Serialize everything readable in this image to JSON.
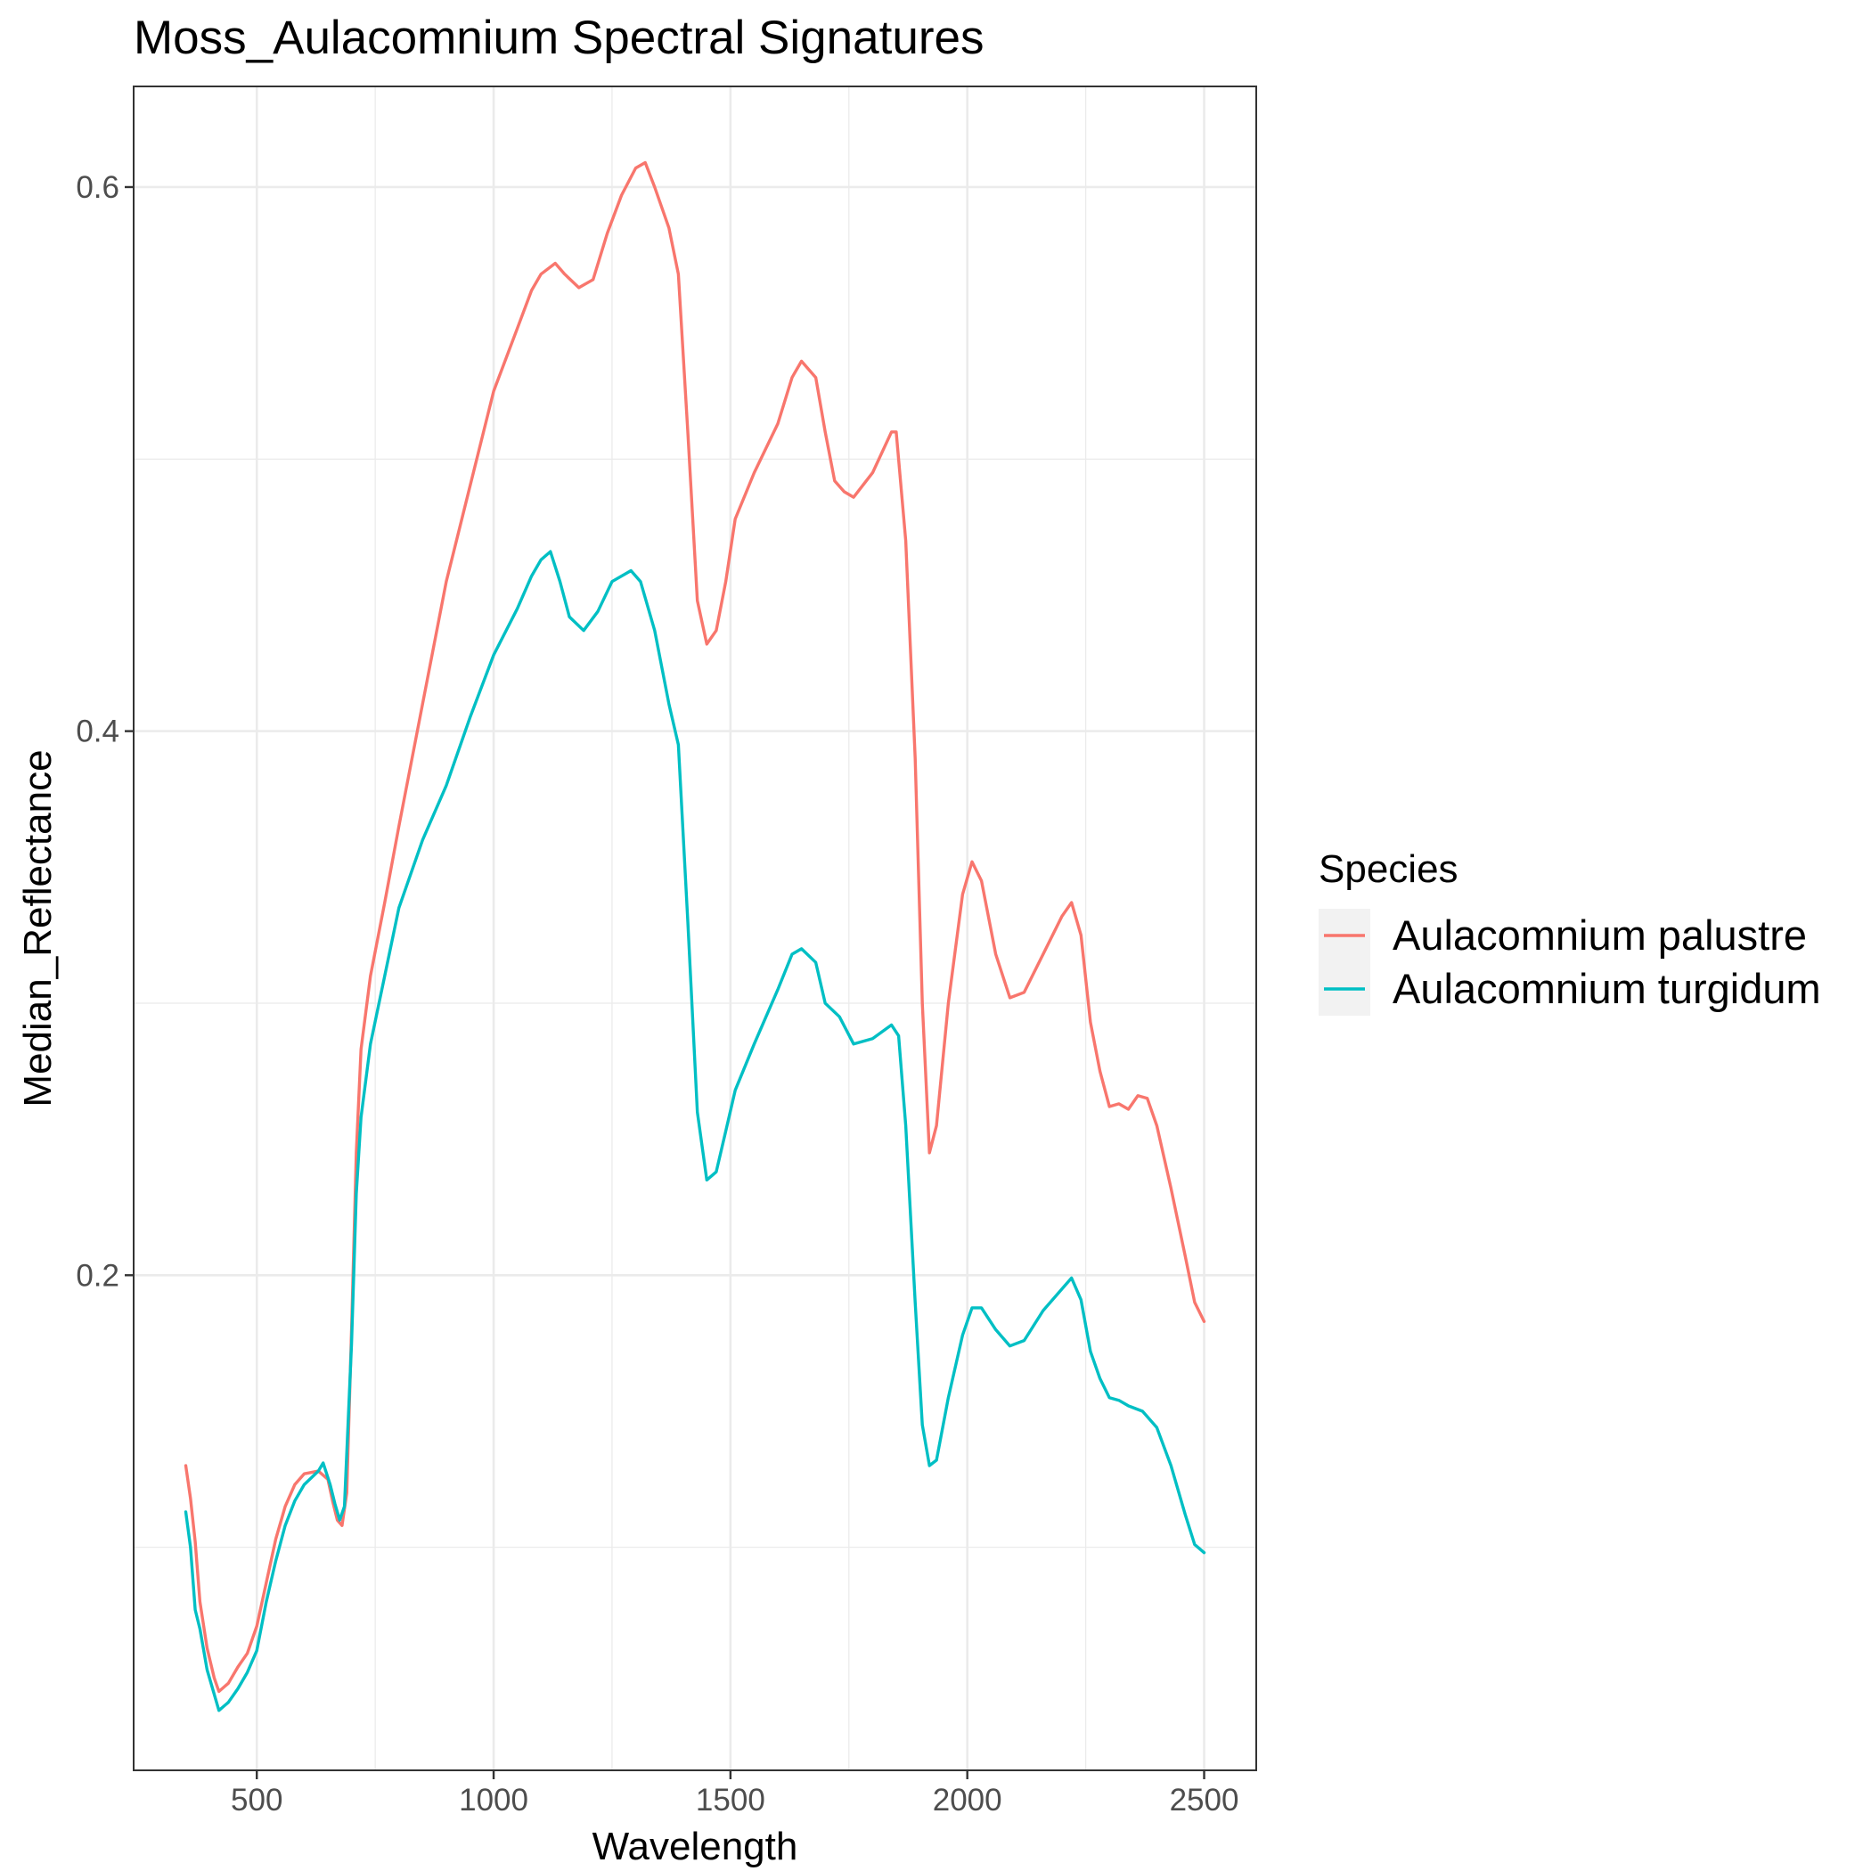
{
  "chart_data": {
    "type": "line",
    "title": "Moss_Aulacomnium Spectral Signatures",
    "xlabel": "Wavelength",
    "ylabel": "Median_Reflectance",
    "xlim": [
      240,
      2610
    ],
    "ylim": [
      0.018,
      0.637
    ],
    "x_ticks": [
      500,
      1000,
      1500,
      2000,
      2500
    ],
    "x_tick_labels": [
      "500",
      "1000",
      "1500",
      "2000",
      "2500"
    ],
    "y_ticks": [
      0.2,
      0.4,
      0.6
    ],
    "y_tick_labels": [
      "0.2",
      "0.4",
      "0.6"
    ],
    "x_minor_ticks": [
      750,
      1250,
      1750,
      2250
    ],
    "y_minor_ticks": [
      0.1,
      0.3,
      0.5
    ],
    "grid": true,
    "legend": {
      "title": "Species",
      "position": "right"
    },
    "series": [
      {
        "name": "Aulacomnium palustre",
        "color": "#F8766D",
        "points": [
          [
            350,
            0.13
          ],
          [
            360,
            0.118
          ],
          [
            370,
            0.102
          ],
          [
            380,
            0.08
          ],
          [
            395,
            0.063
          ],
          [
            410,
            0.052
          ],
          [
            420,
            0.047
          ],
          [
            440,
            0.05
          ],
          [
            460,
            0.056
          ],
          [
            480,
            0.061
          ],
          [
            500,
            0.071
          ],
          [
            520,
            0.087
          ],
          [
            540,
            0.103
          ],
          [
            560,
            0.115
          ],
          [
            580,
            0.123
          ],
          [
            600,
            0.127
          ],
          [
            630,
            0.128
          ],
          [
            650,
            0.125
          ],
          [
            660,
            0.117
          ],
          [
            670,
            0.11
          ],
          [
            680,
            0.108
          ],
          [
            690,
            0.12
          ],
          [
            700,
            0.18
          ],
          [
            710,
            0.245
          ],
          [
            720,
            0.283
          ],
          [
            740,
            0.31
          ],
          [
            770,
            0.337
          ],
          [
            800,
            0.365
          ],
          [
            850,
            0.41
          ],
          [
            900,
            0.455
          ],
          [
            950,
            0.49
          ],
          [
            1000,
            0.525
          ],
          [
            1050,
            0.548
          ],
          [
            1080,
            0.562
          ],
          [
            1100,
            0.568
          ],
          [
            1130,
            0.572
          ],
          [
            1150,
            0.568
          ],
          [
            1180,
            0.563
          ],
          [
            1210,
            0.566
          ],
          [
            1240,
            0.583
          ],
          [
            1270,
            0.597
          ],
          [
            1300,
            0.607
          ],
          [
            1320,
            0.609
          ],
          [
            1340,
            0.6
          ],
          [
            1370,
            0.585
          ],
          [
            1390,
            0.568
          ],
          [
            1410,
            0.51
          ],
          [
            1430,
            0.448
          ],
          [
            1450,
            0.432
          ],
          [
            1470,
            0.437
          ],
          [
            1490,
            0.455
          ],
          [
            1510,
            0.478
          ],
          [
            1550,
            0.495
          ],
          [
            1600,
            0.513
          ],
          [
            1630,
            0.53
          ],
          [
            1650,
            0.536
          ],
          [
            1680,
            0.53
          ],
          [
            1700,
            0.51
          ],
          [
            1720,
            0.492
          ],
          [
            1740,
            0.488
          ],
          [
            1760,
            0.486
          ],
          [
            1800,
            0.495
          ],
          [
            1840,
            0.51
          ],
          [
            1850,
            0.51
          ],
          [
            1870,
            0.47
          ],
          [
            1890,
            0.39
          ],
          [
            1905,
            0.3
          ],
          [
            1920,
            0.245
          ],
          [
            1935,
            0.255
          ],
          [
            1960,
            0.3
          ],
          [
            1990,
            0.34
          ],
          [
            2010,
            0.352
          ],
          [
            2030,
            0.345
          ],
          [
            2060,
            0.318
          ],
          [
            2090,
            0.302
          ],
          [
            2120,
            0.304
          ],
          [
            2160,
            0.318
          ],
          [
            2200,
            0.332
          ],
          [
            2220,
            0.337
          ],
          [
            2240,
            0.325
          ],
          [
            2260,
            0.293
          ],
          [
            2280,
            0.275
          ],
          [
            2300,
            0.262
          ],
          [
            2320,
            0.263
          ],
          [
            2340,
            0.261
          ],
          [
            2360,
            0.266
          ],
          [
            2380,
            0.265
          ],
          [
            2400,
            0.255
          ],
          [
            2430,
            0.232
          ],
          [
            2460,
            0.207
          ],
          [
            2480,
            0.19
          ],
          [
            2500,
            0.183
          ]
        ]
      },
      {
        "name": "Aulacomnium turgidum",
        "color": "#00BFC4",
        "points": [
          [
            350,
            0.113
          ],
          [
            360,
            0.1
          ],
          [
            370,
            0.077
          ],
          [
            380,
            0.07
          ],
          [
            395,
            0.055
          ],
          [
            410,
            0.046
          ],
          [
            420,
            0.04
          ],
          [
            440,
            0.043
          ],
          [
            460,
            0.048
          ],
          [
            480,
            0.054
          ],
          [
            500,
            0.062
          ],
          [
            520,
            0.08
          ],
          [
            540,
            0.095
          ],
          [
            560,
            0.108
          ],
          [
            580,
            0.117
          ],
          [
            600,
            0.123
          ],
          [
            630,
            0.128
          ],
          [
            640,
            0.131
          ],
          [
            655,
            0.123
          ],
          [
            665,
            0.116
          ],
          [
            675,
            0.11
          ],
          [
            685,
            0.115
          ],
          [
            700,
            0.175
          ],
          [
            710,
            0.23
          ],
          [
            720,
            0.258
          ],
          [
            740,
            0.285
          ],
          [
            770,
            0.31
          ],
          [
            800,
            0.335
          ],
          [
            850,
            0.36
          ],
          [
            900,
            0.38
          ],
          [
            950,
            0.405
          ],
          [
            1000,
            0.428
          ],
          [
            1050,
            0.445
          ],
          [
            1080,
            0.457
          ],
          [
            1100,
            0.463
          ],
          [
            1120,
            0.466
          ],
          [
            1140,
            0.455
          ],
          [
            1160,
            0.442
          ],
          [
            1190,
            0.437
          ],
          [
            1220,
            0.444
          ],
          [
            1250,
            0.455
          ],
          [
            1290,
            0.459
          ],
          [
            1310,
            0.455
          ],
          [
            1340,
            0.437
          ],
          [
            1370,
            0.41
          ],
          [
            1390,
            0.395
          ],
          [
            1410,
            0.33
          ],
          [
            1430,
            0.26
          ],
          [
            1450,
            0.235
          ],
          [
            1470,
            0.238
          ],
          [
            1490,
            0.253
          ],
          [
            1510,
            0.268
          ],
          [
            1550,
            0.285
          ],
          [
            1600,
            0.305
          ],
          [
            1630,
            0.318
          ],
          [
            1650,
            0.32
          ],
          [
            1680,
            0.315
          ],
          [
            1700,
            0.3
          ],
          [
            1730,
            0.295
          ],
          [
            1760,
            0.285
          ],
          [
            1800,
            0.287
          ],
          [
            1840,
            0.292
          ],
          [
            1855,
            0.288
          ],
          [
            1870,
            0.255
          ],
          [
            1890,
            0.19
          ],
          [
            1905,
            0.145
          ],
          [
            1920,
            0.13
          ],
          [
            1935,
            0.132
          ],
          [
            1960,
            0.155
          ],
          [
            1990,
            0.178
          ],
          [
            2010,
            0.188
          ],
          [
            2030,
            0.188
          ],
          [
            2060,
            0.18
          ],
          [
            2090,
            0.174
          ],
          [
            2120,
            0.176
          ],
          [
            2160,
            0.187
          ],
          [
            2200,
            0.195
          ],
          [
            2220,
            0.199
          ],
          [
            2240,
            0.191
          ],
          [
            2260,
            0.172
          ],
          [
            2280,
            0.162
          ],
          [
            2300,
            0.155
          ],
          [
            2320,
            0.154
          ],
          [
            2340,
            0.152
          ],
          [
            2370,
            0.15
          ],
          [
            2400,
            0.144
          ],
          [
            2430,
            0.13
          ],
          [
            2460,
            0.112
          ],
          [
            2480,
            0.101
          ],
          [
            2500,
            0.098
          ]
        ]
      }
    ]
  }
}
